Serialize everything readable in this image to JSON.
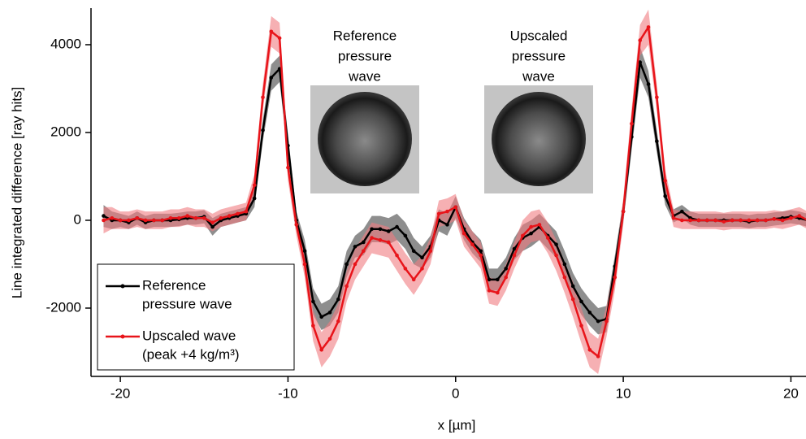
{
  "chart_data": {
    "type": "line",
    "xlabel": "x [µm]",
    "ylabel": "Line integrated difference [ray hits]",
    "x": [
      -21,
      -20.5,
      -20,
      -19.5,
      -19,
      -18.5,
      -18,
      -17.5,
      -17,
      -16.5,
      -16,
      -15.5,
      -15,
      -14.5,
      -14,
      -13.5,
      -13,
      -12.5,
      -12,
      -11.5,
      -11,
      -10.5,
      -10,
      -9.5,
      -9,
      -8.5,
      -8,
      -7.5,
      -7,
      -6.5,
      -6,
      -5.5,
      -5,
      -4.5,
      -4,
      -3.5,
      -3,
      -2.5,
      -2,
      -1.5,
      -1,
      -0.5,
      0,
      0.5,
      1,
      1.5,
      2,
      2.5,
      3,
      3.5,
      4,
      4.5,
      5,
      5.5,
      6,
      6.5,
      7,
      7.5,
      8,
      8.5,
      9,
      9.5,
      10,
      10.5,
      11,
      11.5,
      12,
      12.5,
      13,
      13.5,
      14,
      14.5,
      15,
      15.5,
      16,
      16.5,
      17,
      17.5,
      18,
      18.5,
      19,
      19.5,
      20,
      20.5,
      21
    ],
    "series": [
      {
        "name": [
          "Reference",
          "pressure wave"
        ],
        "color": "#000000",
        "band_color": "#7a7a7a",
        "values": [
          100,
          0,
          0,
          -50,
          50,
          -50,
          0,
          0,
          0,
          20,
          50,
          50,
          80,
          -150,
          0,
          50,
          100,
          150,
          500,
          2050,
          3250,
          3450,
          1700,
          0,
          -700,
          -1850,
          -2200,
          -2100,
          -1800,
          -1000,
          -600,
          -500,
          -200,
          -200,
          -250,
          -150,
          -350,
          -700,
          -850,
          -600,
          0,
          -100,
          300,
          -200,
          -500,
          -700,
          -1350,
          -1350,
          -1100,
          -650,
          -400,
          -300,
          -150,
          -350,
          -550,
          -1000,
          -1500,
          -1850,
          -2100,
          -2300,
          -2250,
          -1050,
          200,
          1900,
          3600,
          3100,
          1800,
          550,
          100,
          200,
          50,
          0,
          0,
          0,
          0,
          0,
          0,
          -30,
          0,
          0,
          30,
          50,
          80,
          50,
          0
        ],
        "errors": [
          250,
          200,
          150,
          150,
          150,
          150,
          150,
          150,
          150,
          150,
          150,
          150,
          150,
          200,
          150,
          150,
          150,
          150,
          200,
          250,
          300,
          300,
          250,
          200,
          250,
          300,
          300,
          300,
          300,
          300,
          250,
          300,
          300,
          300,
          300,
          300,
          300,
          300,
          250,
          250,
          250,
          250,
          250,
          250,
          250,
          250,
          250,
          250,
          250,
          250,
          300,
          300,
          300,
          300,
          300,
          300,
          300,
          300,
          300,
          300,
          300,
          250,
          250,
          300,
          350,
          300,
          250,
          200,
          150,
          150,
          150,
          150,
          150,
          150,
          150,
          150,
          150,
          150,
          150,
          150,
          150,
          150,
          150,
          150,
          150
        ]
      },
      {
        "name": [
          "Upscaled wave",
          "(peak +4 kg/m³)"
        ],
        "color": "#e8141a",
        "band_color": "#f07c80",
        "values": [
          0,
          50,
          0,
          0,
          50,
          0,
          0,
          0,
          50,
          50,
          100,
          50,
          50,
          -50,
          50,
          100,
          150,
          200,
          800,
          2800,
          4300,
          4150,
          1200,
          -100,
          -1000,
          -2400,
          -2950,
          -2700,
          -2300,
          -1500,
          -1000,
          -700,
          -400,
          -450,
          -500,
          -800,
          -1100,
          -1350,
          -1100,
          -700,
          150,
          200,
          300,
          -300,
          -550,
          -800,
          -1600,
          -1650,
          -1300,
          -800,
          -350,
          -150,
          -100,
          -400,
          -800,
          -1300,
          -1800,
          -2400,
          -2950,
          -3100,
          -2300,
          -1300,
          200,
          2200,
          4100,
          4400,
          2800,
          900,
          50,
          0,
          0,
          0,
          0,
          0,
          -30,
          0,
          0,
          0,
          0,
          0,
          30,
          0,
          50,
          100,
          0
        ],
        "errors": [
          300,
          250,
          200,
          200,
          200,
          200,
          200,
          200,
          200,
          200,
          200,
          200,
          200,
          200,
          200,
          200,
          200,
          200,
          250,
          300,
          350,
          350,
          300,
          250,
          300,
          350,
          400,
          400,
          400,
          350,
          350,
          350,
          350,
          350,
          350,
          350,
          350,
          350,
          300,
          300,
          300,
          300,
          300,
          300,
          300,
          300,
          300,
          300,
          300,
          300,
          350,
          350,
          350,
          350,
          350,
          350,
          400,
          400,
          400,
          400,
          350,
          300,
          300,
          350,
          350,
          400,
          300,
          250,
          200,
          200,
          200,
          200,
          200,
          200,
          200,
          200,
          200,
          200,
          200,
          200,
          200,
          200,
          200,
          200,
          200
        ]
      }
    ],
    "xlim": [
      -21.75,
      20.9
    ],
    "ylim": [
      -3556,
      4833
    ],
    "xticks": [
      -20,
      -10,
      0,
      10,
      20
    ],
    "yticks": [
      -2000,
      0,
      2000,
      4000
    ],
    "insets": [
      {
        "lines": [
          "Reference",
          "pressure",
          "wave"
        ]
      },
      {
        "lines": [
          "Upscaled",
          "pressure",
          "wave"
        ]
      }
    ],
    "legend": "lower left"
  }
}
